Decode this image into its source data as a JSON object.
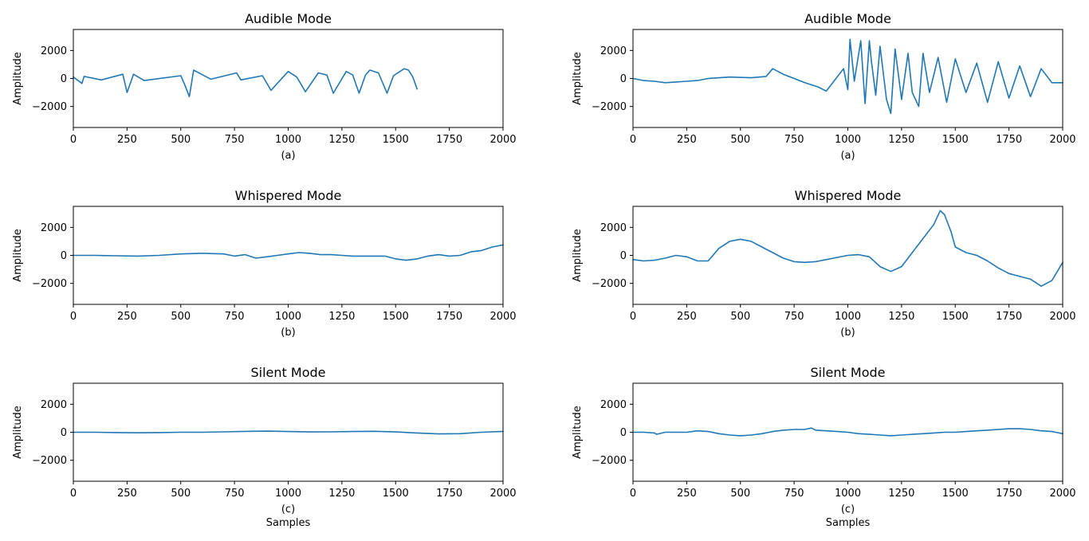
{
  "chart_data": [
    {
      "type": "line",
      "title": "Audible Mode",
      "sublabel": "(a)",
      "xlabel": "",
      "ylabel": "Amplitude",
      "xlim": [
        0,
        2000
      ],
      "ylim": [
        -3500,
        3500
      ],
      "xticks": [
        0,
        250,
        500,
        750,
        1000,
        1250,
        1500,
        1750,
        2000
      ],
      "yticks": [
        -2000,
        0,
        2000
      ],
      "color": "#1f77b4",
      "series": [
        {
          "x": [
            0,
            40,
            50,
            130,
            230,
            250,
            280,
            330,
            500,
            520,
            540,
            560,
            640,
            760,
            780,
            880,
            920,
            1000,
            1040,
            1080,
            1140,
            1180,
            1210,
            1270,
            1300,
            1330,
            1360,
            1380,
            1420,
            1460,
            1490,
            1540,
            1560,
            1580,
            1600
          ],
          "y": [
            100,
            -350,
            150,
            -100,
            300,
            -1000,
            300,
            -150,
            200,
            -500,
            -1300,
            600,
            -50,
            400,
            -100,
            200,
            -850,
            500,
            100,
            -950,
            400,
            250,
            -1050,
            500,
            250,
            -1050,
            250,
            600,
            400,
            -1050,
            200,
            700,
            600,
            100,
            -750
          ]
        }
      ]
    },
    {
      "type": "line",
      "title": "Audible Mode",
      "sublabel": "(a)",
      "xlabel": "",
      "ylabel": "Amplitude",
      "xlim": [
        0,
        2000
      ],
      "ylim": [
        -3500,
        3500
      ],
      "xticks": [
        0,
        250,
        500,
        750,
        1000,
        1250,
        1500,
        1750,
        2000
      ],
      "yticks": [
        -2000,
        0,
        2000
      ],
      "color": "#1f77b4",
      "series": [
        {
          "x": [
            0,
            50,
            100,
            150,
            200,
            250,
            300,
            350,
            450,
            550,
            620,
            650,
            700,
            750,
            800,
            860,
            900,
            930,
            980,
            1000,
            1010,
            1030,
            1060,
            1080,
            1100,
            1110,
            1130,
            1150,
            1180,
            1200,
            1220,
            1250,
            1280,
            1300,
            1330,
            1350,
            1380,
            1420,
            1460,
            1500,
            1550,
            1600,
            1650,
            1700,
            1750,
            1800,
            1850,
            1900,
            1950,
            2000
          ],
          "y": [
            0,
            -150,
            -200,
            -300,
            -250,
            -200,
            -150,
            0,
            100,
            50,
            150,
            700,
            300,
            0,
            -300,
            -600,
            -900,
            -300,
            700,
            -800,
            2800,
            -200,
            2700,
            -1800,
            2700,
            1200,
            -1200,
            2300,
            -1500,
            -2500,
            2100,
            -1500,
            1800,
            -1000,
            -2000,
            1800,
            -1000,
            1500,
            -1700,
            1400,
            -1000,
            1100,
            -1700,
            1200,
            -1400,
            900,
            -1300,
            700,
            -300,
            -300
          ]
        }
      ]
    },
    {
      "type": "line",
      "title": "Whispered Mode",
      "sublabel": "(b)",
      "xlabel": "",
      "ylabel": "Amplitude",
      "xlim": [
        0,
        2000
      ],
      "ylim": [
        -3500,
        3500
      ],
      "xticks": [
        0,
        250,
        500,
        750,
        1000,
        1250,
        1500,
        1750,
        2000
      ],
      "yticks": [
        -2000,
        0,
        2000
      ],
      "color": "#1f77b4",
      "series": [
        {
          "x": [
            0,
            100,
            200,
            300,
            400,
            500,
            600,
            700,
            750,
            800,
            850,
            900,
            950,
            1000,
            1050,
            1100,
            1150,
            1200,
            1250,
            1300,
            1350,
            1400,
            1450,
            1500,
            1550,
            1600,
            1650,
            1700,
            1750,
            1800,
            1850,
            1900,
            1950,
            2000
          ],
          "y": [
            0,
            0,
            -30,
            -50,
            0,
            100,
            150,
            100,
            -50,
            50,
            -200,
            -100,
            0,
            100,
            200,
            150,
            50,
            50,
            0,
            -50,
            -50,
            -50,
            -50,
            -250,
            -350,
            -250,
            -50,
            50,
            -50,
            0,
            250,
            350,
            600,
            750
          ]
        }
      ]
    },
    {
      "type": "line",
      "title": "Whispered Mode",
      "sublabel": "(b)",
      "xlabel": "",
      "ylabel": "Amplitude",
      "xlim": [
        0,
        2000
      ],
      "ylim": [
        -3500,
        3500
      ],
      "xticks": [
        0,
        250,
        500,
        750,
        1000,
        1250,
        1500,
        1750,
        2000
      ],
      "yticks": [
        -2000,
        0,
        2000
      ],
      "color": "#1f77b4",
      "series": [
        {
          "x": [
            0,
            50,
            100,
            150,
            200,
            250,
            300,
            350,
            400,
            450,
            500,
            550,
            600,
            650,
            700,
            750,
            800,
            850,
            900,
            950,
            1000,
            1050,
            1100,
            1150,
            1200,
            1250,
            1300,
            1350,
            1400,
            1430,
            1450,
            1480,
            1500,
            1550,
            1600,
            1650,
            1700,
            1750,
            1800,
            1850,
            1880,
            1900,
            1950,
            2000
          ],
          "y": [
            -300,
            -400,
            -350,
            -200,
            0,
            -100,
            -400,
            -400,
            500,
            1000,
            1150,
            1000,
            600,
            200,
            -200,
            -450,
            -500,
            -450,
            -300,
            -150,
            0,
            50,
            -100,
            -800,
            -1150,
            -800,
            200,
            1200,
            2200,
            3200,
            2900,
            1700,
            600,
            200,
            0,
            -400,
            -900,
            -1300,
            -1500,
            -1700,
            -2000,
            -2200,
            -1800,
            -500
          ]
        }
      ]
    },
    {
      "type": "line",
      "title": "Silent Mode",
      "sublabel": "(c)",
      "xlabel": "Samples",
      "ylabel": "Amplitude",
      "xlim": [
        0,
        2000
      ],
      "ylim": [
        -3500,
        3500
      ],
      "xticks": [
        0,
        250,
        500,
        750,
        1000,
        1250,
        1500,
        1750,
        2000
      ],
      "yticks": [
        -2000,
        0,
        2000
      ],
      "color": "#1f77b4",
      "series": [
        {
          "x": [
            0,
            100,
            200,
            300,
            400,
            500,
            600,
            700,
            800,
            900,
            1000,
            1100,
            1200,
            1300,
            1400,
            1500,
            1600,
            1700,
            1800,
            1900,
            2000
          ],
          "y": [
            0,
            0,
            -20,
            -40,
            -20,
            0,
            0,
            30,
            60,
            80,
            50,
            20,
            30,
            50,
            70,
            20,
            -50,
            -120,
            -100,
            0,
            60
          ]
        }
      ]
    },
    {
      "type": "line",
      "title": "Silent Mode",
      "sublabel": "(c)",
      "xlabel": "Samples",
      "ylabel": "Amplitude",
      "xlim": [
        0,
        2000
      ],
      "ylim": [
        -3500,
        3500
      ],
      "xticks": [
        0,
        250,
        500,
        750,
        1000,
        1250,
        1500,
        1750,
        2000
      ],
      "yticks": [
        -2000,
        0,
        2000
      ],
      "color": "#1f77b4",
      "series": [
        {
          "x": [
            0,
            50,
            100,
            110,
            150,
            200,
            250,
            300,
            350,
            400,
            450,
            500,
            550,
            600,
            650,
            700,
            750,
            800,
            830,
            850,
            900,
            950,
            1000,
            1050,
            1100,
            1150,
            1200,
            1250,
            1300,
            1350,
            1400,
            1450,
            1500,
            1550,
            1600,
            1650,
            1700,
            1750,
            1800,
            1850,
            1900,
            1950,
            2000
          ],
          "y": [
            0,
            0,
            -50,
            -150,
            0,
            0,
            0,
            100,
            50,
            -100,
            -200,
            -250,
            -200,
            -100,
            50,
            150,
            200,
            200,
            300,
            150,
            100,
            50,
            0,
            -100,
            -150,
            -200,
            -250,
            -200,
            -150,
            -100,
            -50,
            0,
            0,
            50,
            100,
            150,
            200,
            250,
            250,
            200,
            100,
            50,
            -100
          ]
        }
      ]
    }
  ]
}
